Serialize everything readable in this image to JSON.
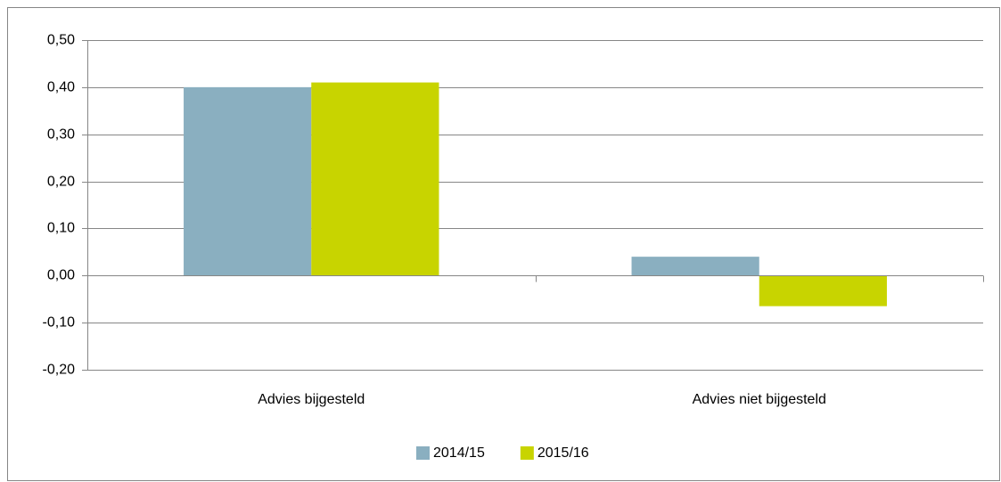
{
  "chart_data": {
    "type": "bar",
    "categories": [
      "Advies bijgesteld",
      "Advies niet bijgesteld"
    ],
    "series": [
      {
        "name": "2014/15",
        "color": "#8aafc0",
        "values": [
          0.4,
          0.04
        ]
      },
      {
        "name": "2015/16",
        "color": "#c8d400",
        "values": [
          0.41,
          -0.065
        ]
      }
    ],
    "ylim": [
      -0.2,
      0.5
    ],
    "yticks": [
      {
        "value": -0.2,
        "label": "-0,20"
      },
      {
        "value": -0.1,
        "label": "-0,10"
      },
      {
        "value": 0,
        "label": "0,00"
      },
      {
        "value": 0.1,
        "label": "0,10"
      },
      {
        "value": 0.2,
        "label": "0,20"
      },
      {
        "value": 0.3,
        "label": "0,30"
      },
      {
        "value": 0.4,
        "label": "0,40"
      },
      {
        "value": 0.5,
        "label": "0,50"
      }
    ],
    "grid": true,
    "legend": "bottom"
  }
}
